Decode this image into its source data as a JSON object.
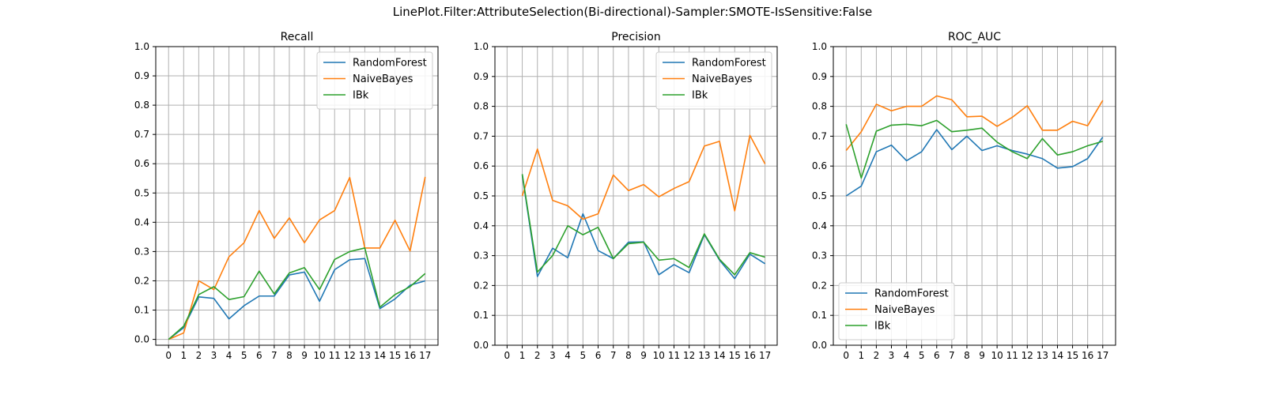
{
  "suptitle": "LinePlot.Filter:AttributeSelection(Bi-directional)-Sampler:SMOTE-IsSensitive:False",
  "colors": {
    "RandomForest": "#1f77b4",
    "NaiveBayes": "#ff7f0e",
    "IBk": "#2ca02c",
    "grid": "#b0b0b0"
  },
  "chart_data": [
    {
      "type": "line",
      "title": "Recall",
      "xlabel": "",
      "ylabel": "",
      "xlim": [
        -0.85,
        17.85
      ],
      "ylim": [
        -0.02,
        1.0
      ],
      "xticks": [
        "0",
        "1",
        "2",
        "3",
        "4",
        "5",
        "6",
        "7",
        "8",
        "9",
        "10",
        "11",
        "12",
        "13",
        "14",
        "15",
        "16",
        "17"
      ],
      "yticks": [
        "0.0",
        "0.1",
        "0.2",
        "0.3",
        "0.4",
        "0.5",
        "0.6",
        "0.7",
        "0.8",
        "0.9",
        "1.0"
      ],
      "grid": true,
      "legend": "upper right",
      "x": [
        0,
        1,
        2,
        3,
        4,
        5,
        6,
        7,
        8,
        9,
        10,
        11,
        12,
        13,
        14,
        15,
        16,
        17
      ],
      "series": [
        {
          "name": "RandomForest",
          "values": [
            0.0,
            0.04,
            0.145,
            0.14,
            0.07,
            0.115,
            0.148,
            0.148,
            0.22,
            0.23,
            0.13,
            0.238,
            0.272,
            0.276,
            0.105,
            0.138,
            0.185,
            0.2
          ]
        },
        {
          "name": "NaiveBayes",
          "values": [
            0.0,
            0.022,
            0.2,
            0.17,
            0.282,
            0.33,
            0.44,
            0.345,
            0.415,
            0.33,
            0.408,
            0.44,
            0.553,
            0.312,
            0.312,
            0.407,
            0.302,
            0.555
          ]
        },
        {
          "name": "IBk",
          "values": [
            0.0,
            0.045,
            0.153,
            0.18,
            0.136,
            0.146,
            0.233,
            0.155,
            0.227,
            0.245,
            0.17,
            0.273,
            0.3,
            0.312,
            0.11,
            0.153,
            0.18,
            0.225
          ]
        }
      ]
    },
    {
      "type": "line",
      "title": "Precision",
      "xlabel": "",
      "ylabel": "",
      "xlim": [
        -0.8,
        17.8
      ],
      "ylim": [
        0.0,
        1.0
      ],
      "xticks": [
        "0",
        "1",
        "2",
        "3",
        "4",
        "5",
        "6",
        "7",
        "8",
        "9",
        "10",
        "11",
        "12",
        "13",
        "14",
        "15",
        "16",
        "17"
      ],
      "yticks": [
        "0.0",
        "0.1",
        "0.2",
        "0.3",
        "0.4",
        "0.5",
        "0.6",
        "0.7",
        "0.8",
        "0.9",
        "1.0"
      ],
      "grid": true,
      "legend": "upper right",
      "x": [
        1,
        2,
        3,
        4,
        5,
        6,
        7,
        8,
        9,
        10,
        11,
        12,
        13,
        14,
        15,
        16,
        17
      ],
      "series": [
        {
          "name": "RandomForest",
          "values": [
            0.57,
            0.23,
            0.325,
            0.293,
            0.44,
            0.317,
            0.29,
            0.345,
            0.346,
            0.236,
            0.27,
            0.243,
            0.37,
            0.285,
            0.223,
            0.305,
            0.273
          ]
        },
        {
          "name": "NaiveBayes",
          "values": [
            0.5,
            0.657,
            0.485,
            0.467,
            0.422,
            0.44,
            0.57,
            0.518,
            0.538,
            0.497,
            0.525,
            0.548,
            0.667,
            0.683,
            0.45,
            0.703,
            0.607
          ]
        },
        {
          "name": "IBk",
          "values": [
            0.573,
            0.245,
            0.3,
            0.4,
            0.37,
            0.395,
            0.29,
            0.34,
            0.345,
            0.285,
            0.29,
            0.26,
            0.373,
            0.288,
            0.236,
            0.31,
            0.295
          ]
        }
      ]
    },
    {
      "type": "line",
      "title": "ROC_AUC",
      "xlabel": "",
      "ylabel": "",
      "xlim": [
        -0.85,
        17.85
      ],
      "ylim": [
        0.0,
        1.0
      ],
      "xticks": [
        "0",
        "1",
        "2",
        "3",
        "4",
        "5",
        "6",
        "7",
        "8",
        "9",
        "10",
        "11",
        "12",
        "13",
        "14",
        "15",
        "16",
        "17"
      ],
      "yticks": [
        "0.0",
        "0.1",
        "0.2",
        "0.3",
        "0.4",
        "0.5",
        "0.6",
        "0.7",
        "0.8",
        "0.9",
        "1.0"
      ],
      "grid": true,
      "legend": "lower left",
      "x": [
        0,
        1,
        2,
        3,
        4,
        5,
        6,
        7,
        8,
        9,
        10,
        11,
        12,
        13,
        14,
        15,
        16,
        17
      ],
      "series": [
        {
          "name": "RandomForest",
          "values": [
            0.5,
            0.533,
            0.648,
            0.67,
            0.618,
            0.648,
            0.722,
            0.655,
            0.7,
            0.652,
            0.668,
            0.652,
            0.64,
            0.625,
            0.593,
            0.598,
            0.625,
            0.697
          ]
        },
        {
          "name": "NaiveBayes",
          "values": [
            0.652,
            0.715,
            0.807,
            0.785,
            0.8,
            0.8,
            0.835,
            0.822,
            0.765,
            0.767,
            0.733,
            0.763,
            0.802,
            0.72,
            0.72,
            0.75,
            0.735,
            0.82
          ]
        },
        {
          "name": "IBk",
          "values": [
            0.74,
            0.56,
            0.717,
            0.737,
            0.74,
            0.735,
            0.753,
            0.715,
            0.72,
            0.727,
            0.68,
            0.648,
            0.625,
            0.692,
            0.637,
            0.648,
            0.668,
            0.683
          ]
        }
      ]
    }
  ]
}
